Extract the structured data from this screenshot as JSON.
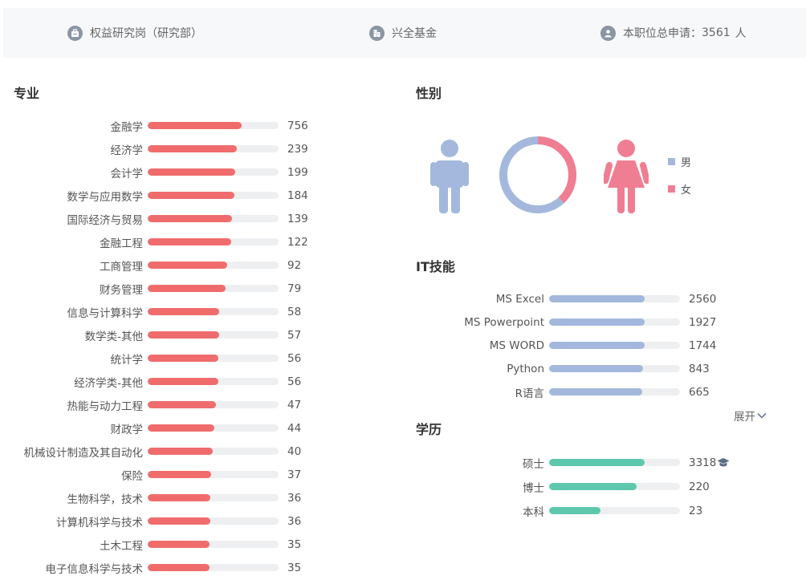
{
  "header": {
    "position": "权益研究岗（研究部）",
    "company": "兴全基金",
    "applicants_prefix": "本职位总申请：",
    "applicants_count": "3561",
    "applicants_unit": "人",
    "icons": [
      "briefcase-icon",
      "building-icon",
      "user-icon"
    ]
  },
  "sections": {
    "major_title": "专业",
    "gender_title": "性别",
    "it_title": "IT技能",
    "edu_title": "学历"
  },
  "colors": {
    "major_bar": "#f06c6c",
    "it_bar": "#a3b8dc",
    "edu_bar": "#5ec8ad",
    "male": "#a3b8dc",
    "female": "#f07e92",
    "track": "#eeeff1"
  },
  "majors": [
    {
      "name": "金融学",
      "value": "756",
      "fill": 0.72
    },
    {
      "name": "经济学",
      "value": "239",
      "fill": 0.68
    },
    {
      "name": "会计学",
      "value": "199",
      "fill": 0.67
    },
    {
      "name": "数学与应用数学",
      "value": "184",
      "fill": 0.66
    },
    {
      "name": "国际经济与贸易",
      "value": "139",
      "fill": 0.645
    },
    {
      "name": "金融工程",
      "value": "122",
      "fill": 0.635
    },
    {
      "name": "工商管理",
      "value": "92",
      "fill": 0.61
    },
    {
      "name": "财务管理",
      "value": "79",
      "fill": 0.595
    },
    {
      "name": "信息与计算科学",
      "value": "58",
      "fill": 0.545
    },
    {
      "name": "数学类-其他",
      "value": "57",
      "fill": 0.545
    },
    {
      "name": "统计学",
      "value": "56",
      "fill": 0.54
    },
    {
      "name": "经济学类-其他",
      "value": "56",
      "fill": 0.54
    },
    {
      "name": "热能与动力工程",
      "value": "47",
      "fill": 0.52
    },
    {
      "name": "财政学",
      "value": "44",
      "fill": 0.51
    },
    {
      "name": "机械设计制造及其自动化",
      "value": "40",
      "fill": 0.495
    },
    {
      "name": "保险",
      "value": "37",
      "fill": 0.485
    },
    {
      "name": "生物科学，技术",
      "value": "36",
      "fill": 0.48
    },
    {
      "name": "计算机科学与技术",
      "value": "36",
      "fill": 0.48
    },
    {
      "name": "土木工程",
      "value": "35",
      "fill": 0.475
    },
    {
      "name": "电子信息科学与技术",
      "value": "35",
      "fill": 0.475
    }
  ],
  "gender": {
    "male_label": "男",
    "female_label": "女",
    "male_share": 0.62,
    "female_share": 0.38
  },
  "it_skills": [
    {
      "name": "MS Excel",
      "value": "2560",
      "fill": 0.73
    },
    {
      "name": "MS Powerpoint",
      "value": "1927",
      "fill": 0.73
    },
    {
      "name": "MS WORD",
      "value": "1744",
      "fill": 0.73
    },
    {
      "name": "Python",
      "value": "843",
      "fill": 0.715
    },
    {
      "name": "R语言",
      "value": "665",
      "fill": 0.71
    }
  ],
  "expand_label": "展开",
  "education": [
    {
      "name": "硕士",
      "value": "3318",
      "fill": 0.73,
      "icon": "graduation-cap-icon"
    },
    {
      "name": "博士",
      "value": "220",
      "fill": 0.67
    },
    {
      "name": "本科",
      "value": "23",
      "fill": 0.39
    }
  ]
}
